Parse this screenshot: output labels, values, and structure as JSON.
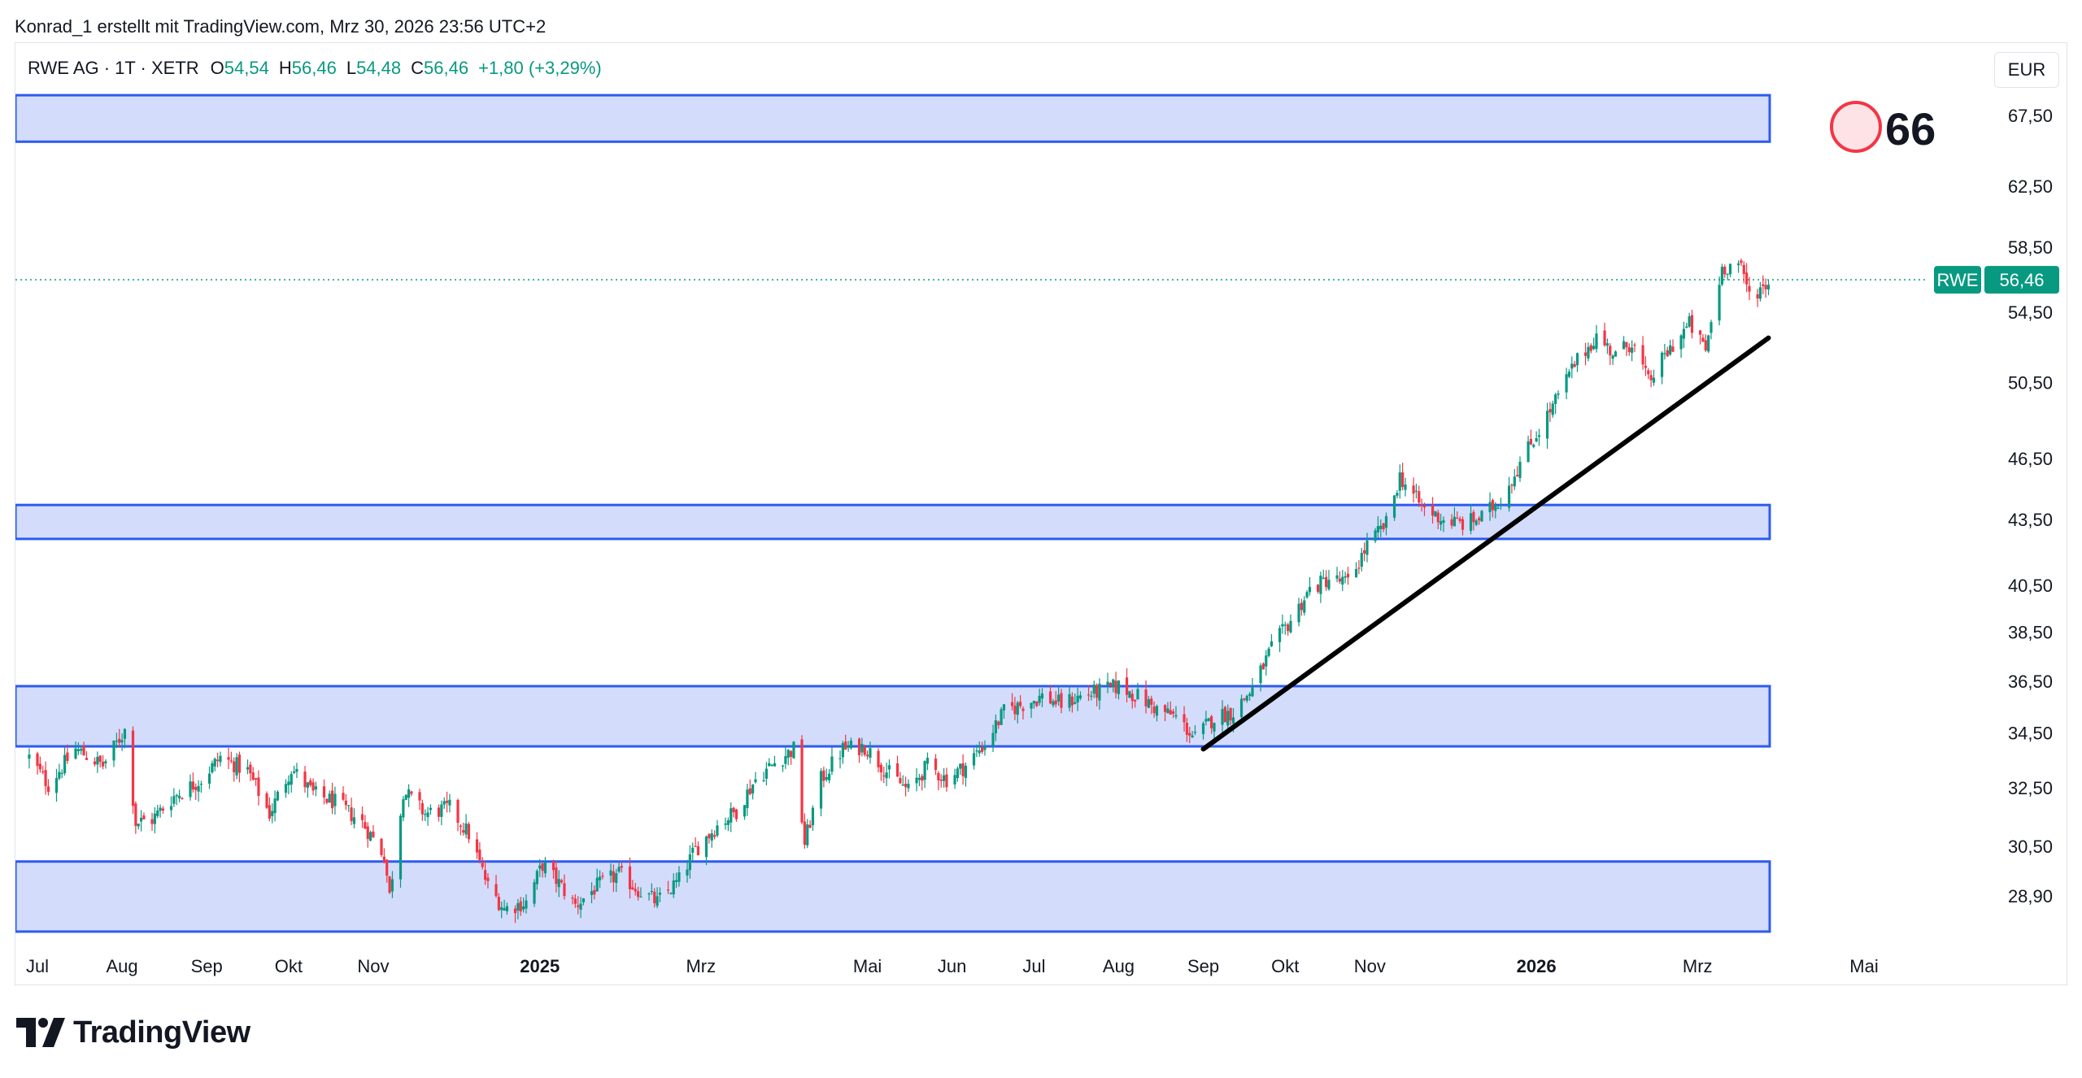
{
  "header": {
    "attribution": "Konrad_1 erstellt mit TradingView.com, Mrz 30, 2026 23:56 UTC+2"
  },
  "legend": {
    "symbol": "RWE AG · 1T · XETR",
    "o_label": "O",
    "o_value": "54,54",
    "h_label": "H",
    "h_value": "56,46",
    "l_label": "L",
    "l_value": "54,48",
    "c_label": "C",
    "c_value": "56,46",
    "change": "+1,80 (+3,29%)"
  },
  "currency": "EUR",
  "price_tag": {
    "ticker": "RWE",
    "value": "56,46"
  },
  "badge": {
    "number": "66"
  },
  "branding": {
    "name": "TradingView"
  },
  "colors": {
    "up": "#089981",
    "down": "#f23645",
    "zone_fill": "#d3dcfb",
    "zone_border": "#2d5bf0",
    "trendline": "#000000",
    "badge_stroke": "#f23645",
    "badge_fill": "#fde3e5"
  },
  "chart_data": {
    "type": "candlestick",
    "y_axis_ticks": [
      "67,50",
      "62,50",
      "58,50",
      "54,50",
      "50,50",
      "46,50",
      "43,50",
      "40,50",
      "38,50",
      "36,50",
      "34,50",
      "32,50",
      "30,50",
      "28,90"
    ],
    "x_axis_ticks": [
      {
        "label": "Jul",
        "bold": false
      },
      {
        "label": "Aug",
        "bold": false
      },
      {
        "label": "Sep",
        "bold": false
      },
      {
        "label": "Okt",
        "bold": false
      },
      {
        "label": "Nov",
        "bold": false
      },
      {
        "label": "2025",
        "bold": true
      },
      {
        "label": "Mrz",
        "bold": false
      },
      {
        "label": "Mai",
        "bold": false
      },
      {
        "label": "Jun",
        "bold": false
      },
      {
        "label": "Jul",
        "bold": false
      },
      {
        "label": "Aug",
        "bold": false
      },
      {
        "label": "Sep",
        "bold": false
      },
      {
        "label": "Okt",
        "bold": false
      },
      {
        "label": "Nov",
        "bold": false
      },
      {
        "label": "2026",
        "bold": true
      },
      {
        "label": "Mrz",
        "bold": false
      },
      {
        "label": "Mai",
        "bold": false
      }
    ],
    "last_price": 56.46,
    "zones": [
      {
        "low": 65.6,
        "high": 69.0
      },
      {
        "low": 42.6,
        "high": 44.2
      },
      {
        "low": 34.0,
        "high": 36.3
      },
      {
        "low": 27.8,
        "high": 30.0
      }
    ],
    "trendline": {
      "from": {
        "date": "2025-09-01",
        "price": 33.9
      },
      "to": {
        "date": "2026-03-27",
        "price": 53.0
      }
    },
    "series_path": [
      [
        "2024-06-28",
        33.6
      ],
      [
        "2024-07-05",
        32.6
      ],
      [
        "2024-07-15",
        33.9
      ],
      [
        "2024-07-25",
        33.3
      ],
      [
        "2024-08-02",
        34.6
      ],
      [
        "2024-08-06",
        31.3
      ],
      [
        "2024-08-12",
        31.4
      ],
      [
        "2024-08-20",
        32.2
      ],
      [
        "2024-08-30",
        32.8
      ],
      [
        "2024-09-06",
        33.6
      ],
      [
        "2024-09-16",
        33.1
      ],
      [
        "2024-09-24",
        31.6
      ],
      [
        "2024-10-02",
        33.2
      ],
      [
        "2024-10-10",
        32.3
      ],
      [
        "2024-10-18",
        32.0
      ],
      [
        "2024-10-28",
        31.3
      ],
      [
        "2024-11-05",
        30.2
      ],
      [
        "2024-11-07",
        28.9
      ],
      [
        "2024-11-12",
        32.4
      ],
      [
        "2024-11-20",
        31.6
      ],
      [
        "2024-11-29",
        31.8
      ],
      [
        "2024-12-06",
        30.9
      ],
      [
        "2024-12-13",
        29.2
      ],
      [
        "2024-12-19",
        28.5
      ],
      [
        "2024-12-27",
        28.7
      ],
      [
        "2025-01-02",
        29.9
      ],
      [
        "2025-01-08",
        29.3
      ],
      [
        "2025-01-14",
        28.6
      ],
      [
        "2025-01-22",
        29.2
      ],
      [
        "2025-01-30",
        29.6
      ],
      [
        "2025-02-06",
        29.1
      ],
      [
        "2025-02-13",
        28.7
      ],
      [
        "2025-02-21",
        29.4
      ],
      [
        "2025-02-27",
        30.4
      ],
      [
        "2025-03-07",
        31.2
      ],
      [
        "2025-03-14",
        31.7
      ],
      [
        "2025-03-21",
        32.8
      ],
      [
        "2025-03-28",
        33.4
      ],
      [
        "2025-04-04",
        33.9
      ],
      [
        "2025-04-08",
        30.6
      ],
      [
        "2025-04-14",
        32.8
      ],
      [
        "2025-04-22",
        33.9
      ],
      [
        "2025-04-30",
        34.0
      ],
      [
        "2025-05-08",
        33.1
      ],
      [
        "2025-05-16",
        32.4
      ],
      [
        "2025-05-23",
        33.3
      ],
      [
        "2025-05-30",
        32.8
      ],
      [
        "2025-06-06",
        33.3
      ],
      [
        "2025-06-13",
        34.1
      ],
      [
        "2025-06-20",
        35.3
      ],
      [
        "2025-06-27",
        35.6
      ],
      [
        "2025-07-04",
        35.9
      ],
      [
        "2025-07-11",
        35.6
      ],
      [
        "2025-07-18",
        35.9
      ],
      [
        "2025-07-25",
        36.1
      ],
      [
        "2025-08-01",
        36.3
      ],
      [
        "2025-08-08",
        35.9
      ],
      [
        "2025-08-15",
        35.4
      ],
      [
        "2025-08-22",
        35.1
      ],
      [
        "2025-08-29",
        34.3
      ],
      [
        "2025-09-05",
        35.1
      ],
      [
        "2025-09-12",
        35.3
      ],
      [
        "2025-09-19",
        36.2
      ],
      [
        "2025-09-26",
        37.8
      ],
      [
        "2025-10-03",
        39.0
      ],
      [
        "2025-10-10",
        40.3
      ],
      [
        "2025-10-17",
        40.8
      ],
      [
        "2025-10-24",
        40.6
      ],
      [
        "2025-10-31",
        42.3
      ],
      [
        "2025-11-07",
        43.3
      ],
      [
        "2025-11-12",
        45.6
      ],
      [
        "2025-11-20",
        44.1
      ],
      [
        "2025-11-28",
        43.5
      ],
      [
        "2025-12-05",
        43.3
      ],
      [
        "2025-12-12",
        43.6
      ],
      [
        "2025-12-19",
        44.5
      ],
      [
        "2025-12-29",
        47.0
      ],
      [
        "2026-01-07",
        49.2
      ],
      [
        "2026-01-15",
        51.5
      ],
      [
        "2026-01-23",
        53.1
      ],
      [
        "2026-01-30",
        52.0
      ],
      [
        "2026-02-05",
        52.8
      ],
      [
        "2026-02-11",
        50.5
      ],
      [
        "2026-02-19",
        52.4
      ],
      [
        "2026-02-26",
        53.8
      ],
      [
        "2026-03-04",
        52.3
      ],
      [
        "2026-03-10",
        57.2
      ],
      [
        "2026-03-16",
        57.5
      ],
      [
        "2026-03-20",
        55.6
      ],
      [
        "2026-03-25",
        56.0
      ],
      [
        "2026-03-27",
        56.4
      ]
    ]
  }
}
